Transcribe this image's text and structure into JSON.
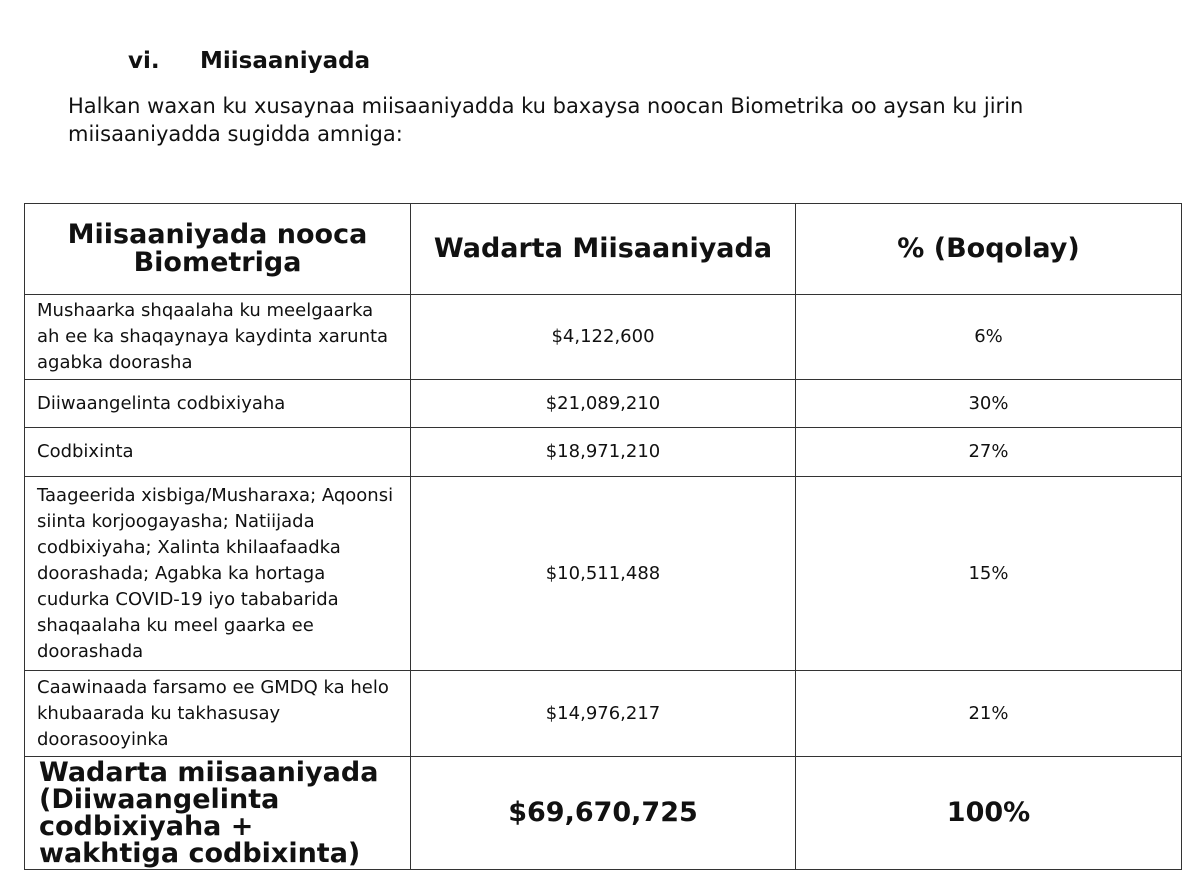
{
  "section": {
    "number": "vi.",
    "title": "Miisaaniyada"
  },
  "intro": "Halkan waxan ku xusaynaa miisaaniyadda ku baxaysa noocan Biometrika oo aysan ku jirin miisaaniyadda sugidda amniga:",
  "table": {
    "headers": [
      "Miisaaniyada nooca Biometriga",
      "Wadarta Miisaaniyada",
      "% (Boqolay)"
    ],
    "rows": [
      {
        "item": "Mushaarka shqaalaha ku meelgaarka ah ee ka shaqaynaya kaydinta xarunta agabka doorasha",
        "total": "$4,122,600",
        "percent": "6%"
      },
      {
        "item": "Diiwaangelinta codbixiyaha",
        "total": "$21,089,210",
        "percent": "30%"
      },
      {
        "item": "Codbixinta",
        "total": "$18,971,210",
        "percent": "27%"
      },
      {
        "item": "Taageerida xisbiga/Musharaxa; Aqoonsi siinta korjoogayasha; Natiijada codbixiyaha; Xalinta khilaafaadka doorashada; Agabka ka hortaga cudurka COVID-19 iyo tababarida shaqaalaha ku meel gaarka ee doorashada",
        "total": "$10,511,488",
        "percent": "15%"
      },
      {
        "item": "Caawinaada farsamo ee GMDQ ka helo khubaarada ku takhasusay doorasooyinka",
        "total": "$14,976,217",
        "percent": "21%"
      }
    ],
    "total_row": {
      "item": "Wadarta miisaaniyada (Diiwaangelinta codbixiyaha + wakhtiga codbixinta)",
      "total": "$69,670,725",
      "percent": "100%"
    }
  }
}
